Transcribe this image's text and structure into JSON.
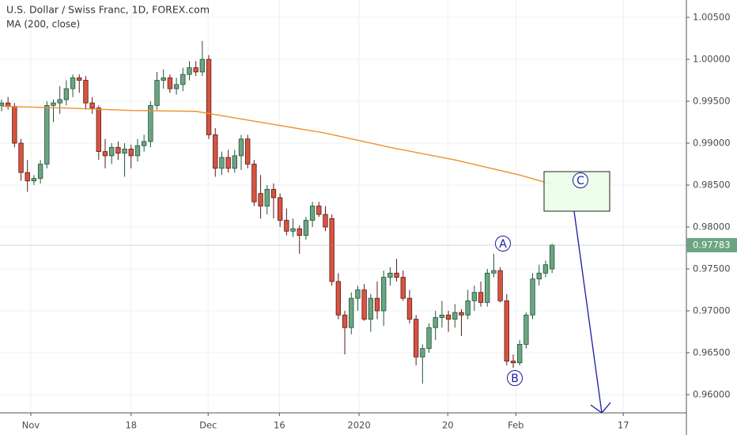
{
  "chart_data": {
    "type": "candlestick",
    "title": "U.S. Dollar / Swiss Franc, 1D, FOREX.com",
    "up_color": "#6ba583",
    "up_border": "#225437",
    "down_color": "#d75442",
    "down_border": "#5b1a13",
    "grid": true,
    "xlim": [
      -0.24,
      105.74
    ],
    "xticks": [
      {
        "value": 4.52,
        "label": "Nov"
      },
      {
        "value": 20.0,
        "label": "18"
      },
      {
        "value": 31.9,
        "label": "Dec"
      },
      {
        "value": 42.9,
        "label": "16"
      },
      {
        "value": 55.2,
        "label": "2020"
      },
      {
        "value": 68.9,
        "label": "20"
      },
      {
        "value": 79.4,
        "label": "Feb"
      },
      {
        "value": 96.0,
        "label": "17"
      }
    ],
    "ylim": [
      0.95783,
      1.00708
    ],
    "yticks": [
      {
        "value": 1.005,
        "label": "1.00500"
      },
      {
        "value": 1.0,
        "label": "1.00000"
      },
      {
        "value": 0.995,
        "label": "0.99500"
      },
      {
        "value": 0.99,
        "label": "0.99000"
      },
      {
        "value": 0.985,
        "label": "0.98500"
      },
      {
        "value": 0.98,
        "label": "0.98000"
      },
      {
        "value": 0.975,
        "label": "0.97500"
      },
      {
        "value": 0.97,
        "label": "0.97000"
      },
      {
        "value": 0.965,
        "label": "0.96500"
      },
      {
        "value": 0.96,
        "label": "0.96000"
      }
    ],
    "ohlc": [
      [
        0.9945,
        0.9952,
        0.9938,
        0.9948
      ],
      [
        0.9948,
        0.9955,
        0.994,
        0.9944
      ],
      [
        0.9944,
        0.9948,
        0.9895,
        0.99
      ],
      [
        0.99,
        0.9905,
        0.9855,
        0.9865
      ],
      [
        0.9865,
        0.988,
        0.9842,
        0.9855
      ],
      [
        0.9855,
        0.9862,
        0.985,
        0.9858
      ],
      [
        0.9858,
        0.988,
        0.9852,
        0.9875
      ],
      [
        0.9875,
        0.995,
        0.987,
        0.9945
      ],
      [
        0.9945,
        0.9952,
        0.9925,
        0.9948
      ],
      [
        0.9948,
        0.9968,
        0.9935,
        0.9952
      ],
      [
        0.9952,
        0.9975,
        0.9945,
        0.9965
      ],
      [
        0.9965,
        0.9982,
        0.9955,
        0.9978
      ],
      [
        0.9978,
        0.9982,
        0.996,
        0.9975
      ],
      [
        0.9975,
        0.998,
        0.994,
        0.9948
      ],
      [
        0.9948,
        0.9955,
        0.9935,
        0.9942
      ],
      [
        0.9942,
        0.9945,
        0.988,
        0.989
      ],
      [
        0.989,
        0.9905,
        0.987,
        0.9885
      ],
      [
        0.9885,
        0.99,
        0.9875,
        0.9895
      ],
      [
        0.9895,
        0.9902,
        0.988,
        0.9888
      ],
      [
        0.9888,
        0.99,
        0.986,
        0.9893
      ],
      [
        0.9893,
        0.9898,
        0.987,
        0.9885
      ],
      [
        0.9885,
        0.9905,
        0.9878,
        0.9897
      ],
      [
        0.9897,
        0.991,
        0.989,
        0.9902
      ],
      [
        0.9902,
        0.995,
        0.9895,
        0.9945
      ],
      [
        0.9945,
        0.9985,
        0.994,
        0.9975
      ],
      [
        0.9975,
        0.9988,
        0.9965,
        0.9978
      ],
      [
        0.9978,
        0.9982,
        0.996,
        0.9965
      ],
      [
        0.9965,
        0.9978,
        0.9958,
        0.997
      ],
      [
        0.997,
        0.999,
        0.9962,
        0.9982
      ],
      [
        0.9982,
        0.9998,
        0.9975,
        0.999
      ],
      [
        0.999,
        0.9998,
        0.998,
        0.9985
      ],
      [
        0.9985,
        1.0022,
        0.998,
        1.0
      ],
      [
        1.0,
        1.0005,
        0.9905,
        0.991
      ],
      [
        0.991,
        0.9918,
        0.986,
        0.987
      ],
      [
        0.987,
        0.989,
        0.9862,
        0.9883
      ],
      [
        0.9883,
        0.9892,
        0.9865,
        0.987
      ],
      [
        0.987,
        0.9892,
        0.9865,
        0.9885
      ],
      [
        0.9885,
        0.991,
        0.9868,
        0.9905
      ],
      [
        0.9905,
        0.991,
        0.987,
        0.9875
      ],
      [
        0.9875,
        0.988,
        0.9825,
        0.983
      ],
      [
        0.984,
        0.9862,
        0.981,
        0.9825
      ],
      [
        0.9825,
        0.985,
        0.9815,
        0.9845
      ],
      [
        0.9845,
        0.9852,
        0.981,
        0.9835
      ],
      [
        0.9835,
        0.984,
        0.98,
        0.9808
      ],
      [
        0.9808,
        0.9822,
        0.979,
        0.9795
      ],
      [
        0.9795,
        0.981,
        0.9788,
        0.9798
      ],
      [
        0.9798,
        0.9802,
        0.9768,
        0.979
      ],
      [
        0.979,
        0.9812,
        0.9785,
        0.9808
      ],
      [
        0.9808,
        0.983,
        0.98,
        0.9825
      ],
      [
        0.9825,
        0.983,
        0.9812,
        0.9815
      ],
      [
        0.9815,
        0.9825,
        0.9795,
        0.98
      ],
      [
        0.981,
        0.9815,
        0.973,
        0.9735
      ],
      [
        0.9735,
        0.9745,
        0.969,
        0.9695
      ],
      [
        0.9695,
        0.97,
        0.9648,
        0.968
      ],
      [
        0.968,
        0.9722,
        0.9672,
        0.9715
      ],
      [
        0.9715,
        0.973,
        0.97,
        0.9725
      ],
      [
        0.9725,
        0.9732,
        0.9688,
        0.969
      ],
      [
        0.969,
        0.972,
        0.9675,
        0.9715
      ],
      [
        0.9715,
        0.9735,
        0.969,
        0.97
      ],
      [
        0.97,
        0.9748,
        0.9682,
        0.974
      ],
      [
        0.974,
        0.9752,
        0.973,
        0.9745
      ],
      [
        0.9745,
        0.9762,
        0.9735,
        0.974
      ],
      [
        0.974,
        0.9748,
        0.9712,
        0.9715
      ],
      [
        0.9715,
        0.9725,
        0.9685,
        0.969
      ],
      [
        0.969,
        0.9695,
        0.9635,
        0.9645
      ],
      [
        0.9645,
        0.966,
        0.9613,
        0.9655
      ],
      [
        0.9655,
        0.9685,
        0.965,
        0.968
      ],
      [
        0.968,
        0.97,
        0.9665,
        0.9692
      ],
      [
        0.9692,
        0.9712,
        0.968,
        0.9695
      ],
      [
        0.9695,
        0.97,
        0.9675,
        0.969
      ],
      [
        0.969,
        0.9708,
        0.968,
        0.9698
      ],
      [
        0.9698,
        0.9702,
        0.967,
        0.9695
      ],
      [
        0.9695,
        0.9725,
        0.969,
        0.9712
      ],
      [
        0.9712,
        0.973,
        0.97,
        0.9722
      ],
      [
        0.9722,
        0.9735,
        0.9705,
        0.971
      ],
      [
        0.971,
        0.975,
        0.9705,
        0.9745
      ],
      [
        0.9745,
        0.9768,
        0.974,
        0.9748
      ],
      [
        0.9748,
        0.9752,
        0.971,
        0.9712
      ],
      [
        0.9712,
        0.972,
        0.9635,
        0.964
      ],
      [
        0.964,
        0.9648,
        0.9632,
        0.9638
      ],
      [
        0.9638,
        0.9665,
        0.9635,
        0.966
      ],
      [
        0.966,
        0.9698,
        0.9655,
        0.9695
      ],
      [
        0.9695,
        0.9745,
        0.969,
        0.9738
      ],
      [
        0.9738,
        0.9755,
        0.973,
        0.9745
      ],
      [
        0.9745,
        0.976,
        0.974,
        0.9755
      ],
      [
        0.975,
        0.978,
        0.9745,
        0.97783
      ]
    ],
    "ma": {
      "name": "MA (200, close)",
      "color": "#f0902f",
      "x": [
        0,
        10,
        20,
        30,
        40,
        50,
        60,
        70,
        80,
        85
      ],
      "values": [
        0.9944,
        0.9942,
        0.9939,
        0.9938,
        0.9925,
        0.9912,
        0.9895,
        0.988,
        0.9862,
        0.9851
      ]
    },
    "annotations": [
      {
        "text": "A"
      },
      {
        "text": "B"
      },
      {
        "text": "C"
      }
    ]
  }
}
